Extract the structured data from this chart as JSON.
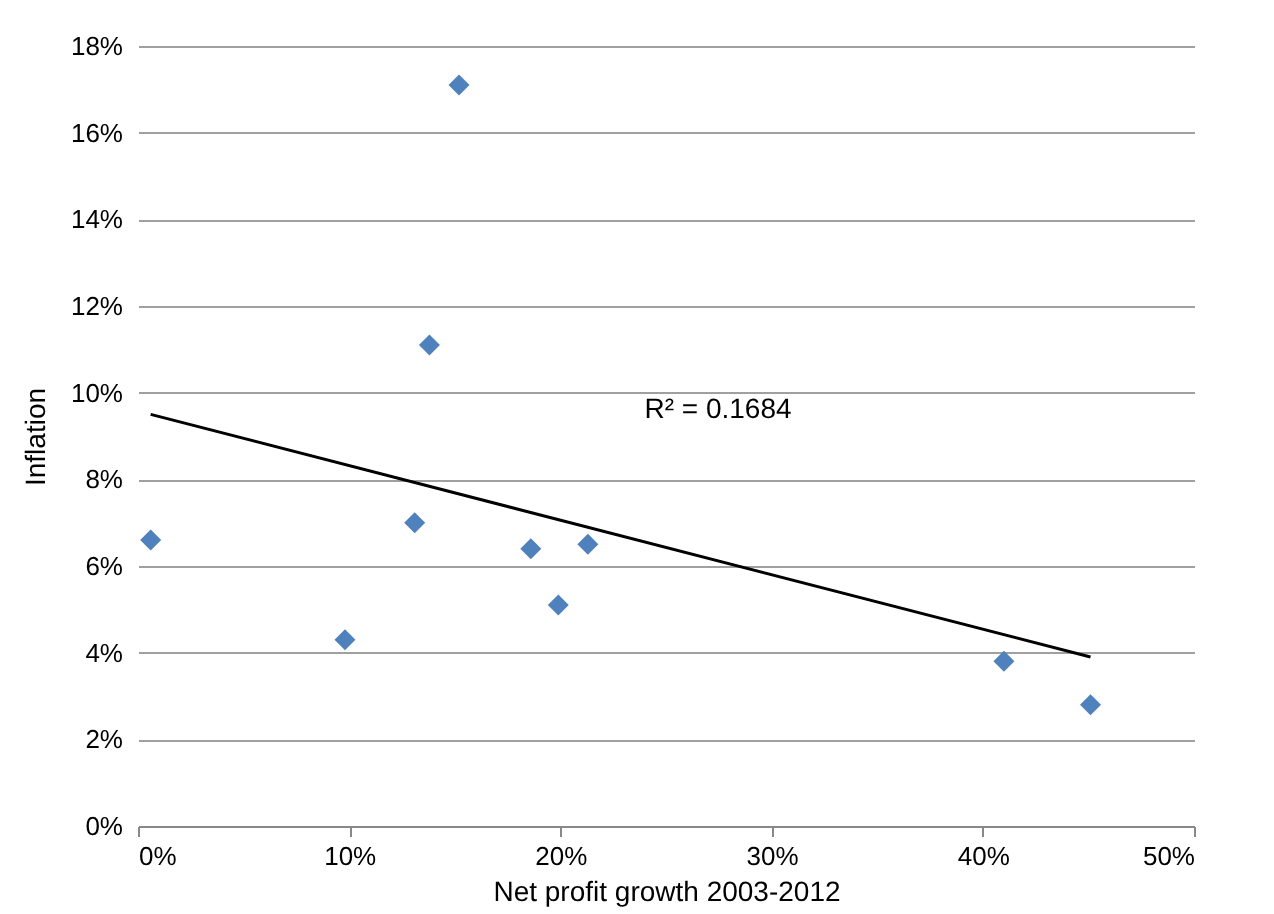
{
  "chart_data": {
    "type": "scatter",
    "xlabel": "Net profit growth 2003-2012",
    "ylabel": "Inflation",
    "xlim": [
      0,
      50
    ],
    "xticks": [
      {
        "value": 0,
        "label": "0%"
      },
      {
        "value": 10,
        "label": "10%"
      },
      {
        "value": 20,
        "label": "20%"
      },
      {
        "value": 30,
        "label": "30%"
      },
      {
        "value": 40,
        "label": "40%"
      },
      {
        "value": 50,
        "label": "50%"
      }
    ],
    "ylim": [
      0,
      18
    ],
    "yticks": [
      {
        "value": 0,
        "label": "0%"
      },
      {
        "value": 2,
        "label": "2%"
      },
      {
        "value": 4,
        "label": "4%"
      },
      {
        "value": 6,
        "label": "6%"
      },
      {
        "value": 8,
        "label": "8%"
      },
      {
        "value": 10,
        "label": "10%"
      },
      {
        "value": 12,
        "label": "12%"
      },
      {
        "value": 14,
        "label": "14%"
      },
      {
        "value": 16,
        "label": "16%"
      },
      {
        "value": 18,
        "label": "18%"
      }
    ],
    "grid": "y",
    "marker": "diamond",
    "series": [
      {
        "color": "#4f81bd",
        "x": [
          0.6,
          9.8,
          13.1,
          13.8,
          15.2,
          18.6,
          19.9,
          21.3,
          41.0,
          45.1
        ],
        "values": [
          6.6,
          4.3,
          7.0,
          11.1,
          17.1,
          6.4,
          5.1,
          6.5,
          3.8,
          2.8
        ]
      },
      {
        "type": "line",
        "marker": "none",
        "color": "#000000",
        "x": [
          0.6,
          45.1
        ],
        "values": [
          9.5,
          3.9
        ]
      }
    ],
    "annotations": [
      "R² = 0.1684"
    ]
  }
}
